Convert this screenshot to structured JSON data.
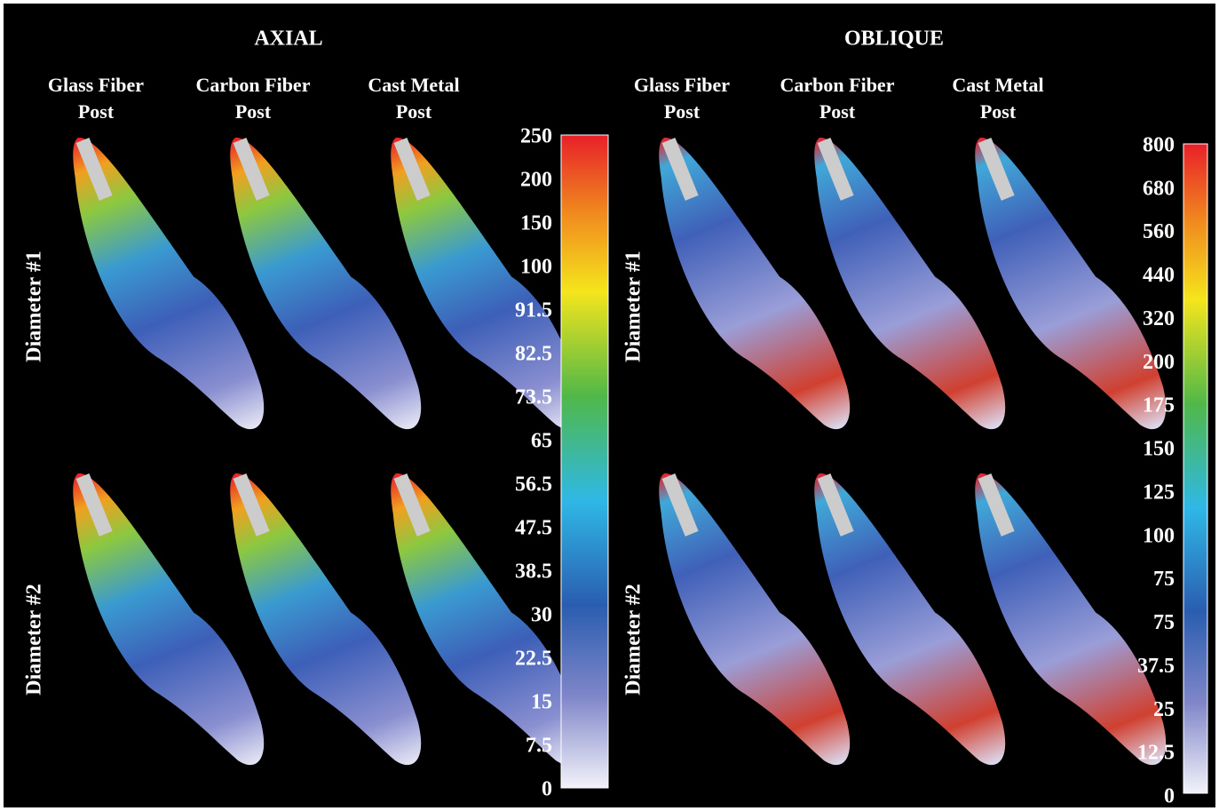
{
  "panels": [
    {
      "title": "AXIAL",
      "columns": [
        [
          "Glass Fiber",
          "Post"
        ],
        [
          "Carbon Fiber",
          "Post"
        ],
        [
          "Cast Metal",
          "Post"
        ]
      ],
      "rows": [
        "Diameter #1",
        "Diameter #2"
      ],
      "scale": [
        250,
        200,
        150,
        100,
        91.5,
        82.5,
        73.5,
        65,
        56.5,
        47.5,
        38.5,
        30,
        22.5,
        15,
        7.5,
        0
      ]
    },
    {
      "title": "OBLIQUE",
      "columns": [
        [
          "Glass Fiber",
          "Post"
        ],
        [
          "Carbon Fiber",
          "Post"
        ],
        [
          "Cast Metal",
          "Post"
        ]
      ],
      "rows": [
        "Diameter #1",
        "Diameter #2"
      ],
      "scale": [
        800,
        680,
        560,
        440,
        320,
        200,
        175,
        150,
        125,
        100,
        75,
        75,
        37.5,
        25,
        12.5,
        0
      ]
    }
  ]
}
